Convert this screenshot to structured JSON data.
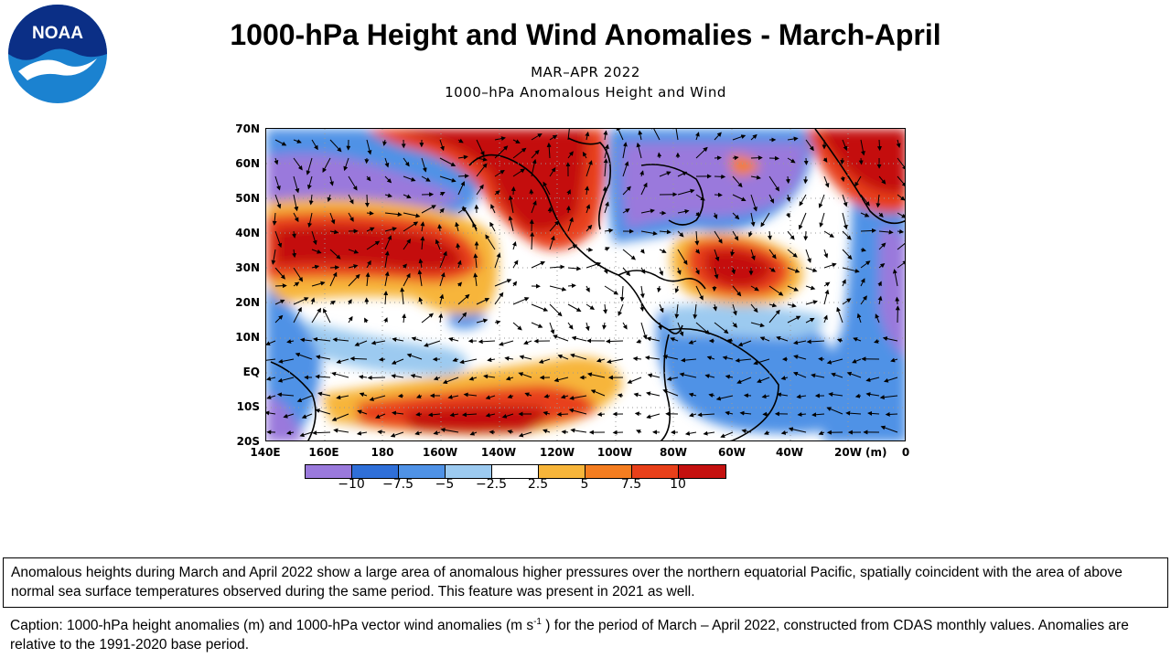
{
  "slide": {
    "title": "1000-hPa Height  and Wind Anomalies - March-April",
    "logo_text": "NOAA"
  },
  "map": {
    "subtitle_period": "MAR–APR 2022",
    "subtitle_field": "1000–hPa Anomalous Height and Wind",
    "lat_labels": [
      "70N",
      "60N",
      "50N",
      "40N",
      "30N",
      "20N",
      "10N",
      "EQ",
      "10S",
      "20S"
    ],
    "lon_labels": [
      "140E",
      "160E",
      "180",
      "160W",
      "140W",
      "120W",
      "100W",
      "80W",
      "60W",
      "40W",
      "20W",
      "0"
    ],
    "units": "(m)"
  },
  "colorbar": {
    "colors": [
      "#9a79dc",
      "#2f6fd8",
      "#4f92e6",
      "#9ccaf0",
      "#ffffff",
      "#f7b53a",
      "#f47d20",
      "#e8401a",
      "#c4110f"
    ],
    "labels": [
      "−10",
      "−7.5",
      "−5",
      "−2.5",
      "2.5",
      "5",
      "7.5",
      "10"
    ]
  },
  "chart_data": {
    "type": "heatmap",
    "title": "1000–hPa Anomalous Height and Wind",
    "subtitle": "MAR–APR 2022",
    "xlabel": "",
    "ylabel": "",
    "x_ticks": [
      "140E",
      "160E",
      "180",
      "160W",
      "140W",
      "120W",
      "100W",
      "80W",
      "60W",
      "40W",
      "20W",
      "0"
    ],
    "y_ticks": [
      "70N",
      "60N",
      "50N",
      "40N",
      "30N",
      "20N",
      "10N",
      "EQ",
      "10S",
      "20S"
    ],
    "xlim": [
      "140E",
      "0"
    ],
    "ylim": [
      "20S",
      "70N"
    ],
    "units": "(m)",
    "color_levels": [
      -10,
      -7.5,
      -5,
      -2.5,
      2.5,
      5,
      7.5,
      10
    ]
  },
  "description": {
    "text": "Anomalous heights during March and April 2022 show a large area of anomalous higher pressures over the northern equatorial Pacific, spatially coincident with the area of above normal sea surface temperatures observed during the same period. This feature was present in 2021 as well."
  },
  "caption": {
    "part1": "Caption: 1000-hPa height anomalies (m) and 1000-hPa vector wind anomalies (m s",
    "sup": "-1",
    "part2": " ) for the period of March – April 2022, constructed from CDAS monthly values. Anomalies are relative to the 1991-2020 base period."
  }
}
